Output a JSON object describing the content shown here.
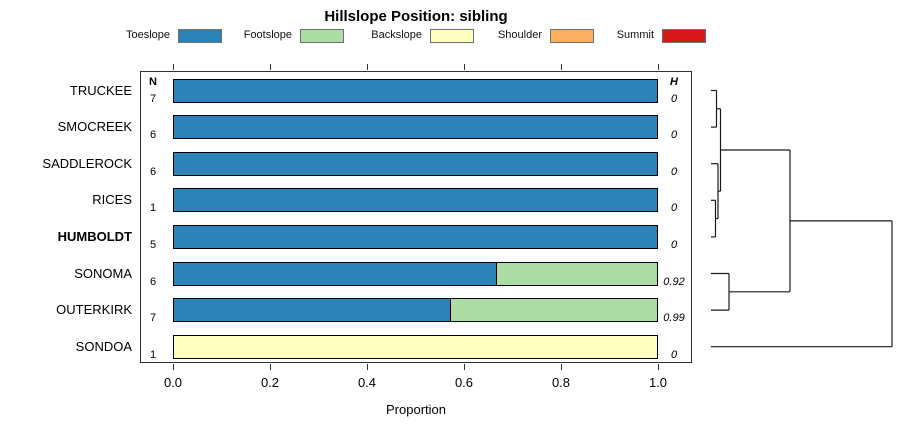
{
  "title": "Hillslope Position: sibling",
  "legend": {
    "items": [
      {
        "label": "Toeslope",
        "color": "#2b83ba"
      },
      {
        "label": "Footslope",
        "color": "#abdda4"
      },
      {
        "label": "Backslope",
        "color": "#ffffbf"
      },
      {
        "label": "Shoulder",
        "color": "#fdae61"
      },
      {
        "label": "Summit",
        "color": "#d7191c"
      }
    ]
  },
  "columns": {
    "n_header": "N",
    "h_header": "H"
  },
  "axis": {
    "label": "Proportion",
    "tick_labels": [
      "0.0",
      "0.2",
      "0.4",
      "0.6",
      "0.8",
      "1.0"
    ],
    "tick_values": [
      0,
      0.2,
      0.4,
      0.6,
      0.8,
      1.0
    ]
  },
  "chart_data": {
    "type": "bar",
    "orientation": "horizontal",
    "stacked": true,
    "title": "Hillslope Position: sibling",
    "xlabel": "Proportion",
    "xlim": [
      0,
      1
    ],
    "legend_position": "top",
    "categories": [
      "TRUCKEE",
      "SMOCREEK",
      "SADDLEROCK",
      "RICES",
      "HUMBOLDT",
      "SONOMA",
      "OUTERKIRK",
      "SONDOA"
    ],
    "colors": {
      "Toeslope": "#2b83ba",
      "Footslope": "#abdda4",
      "Backslope": "#ffffbf",
      "Shoulder": "#fdae61",
      "Summit": "#d7191c"
    },
    "rows": [
      {
        "label": "TRUCKEE",
        "bold": false,
        "n": "7",
        "h": "0",
        "segments": [
          {
            "name": "Toeslope",
            "value": 1.0
          }
        ]
      },
      {
        "label": "SMOCREEK",
        "bold": false,
        "n": "6",
        "h": "0",
        "segments": [
          {
            "name": "Toeslope",
            "value": 1.0
          }
        ]
      },
      {
        "label": "SADDLEROCK",
        "bold": false,
        "n": "6",
        "h": "0",
        "segments": [
          {
            "name": "Toeslope",
            "value": 1.0
          }
        ]
      },
      {
        "label": "RICES",
        "bold": false,
        "n": "1",
        "h": "0",
        "segments": [
          {
            "name": "Toeslope",
            "value": 1.0
          }
        ]
      },
      {
        "label": "HUMBOLDT",
        "bold": true,
        "n": "5",
        "h": "0",
        "segments": [
          {
            "name": "Toeslope",
            "value": 1.0
          }
        ]
      },
      {
        "label": "SONOMA",
        "bold": false,
        "n": "6",
        "h": "0.92",
        "segments": [
          {
            "name": "Toeslope",
            "value": 0.667
          },
          {
            "name": "Footslope",
            "value": 0.333
          }
        ]
      },
      {
        "label": "OUTERKIRK",
        "bold": false,
        "n": "7",
        "h": "0.99",
        "segments": [
          {
            "name": "Toeslope",
            "value": 0.571
          },
          {
            "name": "Footslope",
            "value": 0.429
          }
        ]
      },
      {
        "label": "SONDOA",
        "bold": false,
        "n": "1",
        "h": "0",
        "segments": [
          {
            "name": "Backslope",
            "value": 1.0
          }
        ]
      }
    ],
    "dendrogram": {
      "leaves": [
        "TRUCKEE",
        "SMOCREEK",
        "SADDLEROCK",
        "RICES",
        "HUMBOLDT",
        "SONOMA",
        "OUTERKIRK",
        "SONDOA"
      ],
      "merges": [
        {
          "id": "m1",
          "children": [
            "TRUCKEE",
            "SMOCREEK"
          ],
          "height": 5.5
        },
        {
          "id": "m2",
          "children": [
            "RICES",
            "HUMBOLDT"
          ],
          "height": 4.5
        },
        {
          "id": "m3",
          "children": [
            "SADDLEROCK",
            "m2"
          ],
          "height": 7
        },
        {
          "id": "m4",
          "children": [
            "m1",
            "m3"
          ],
          "height": 9.5
        },
        {
          "id": "m5",
          "children": [
            "SONOMA",
            "OUTERKIRK"
          ],
          "height": 18
        },
        {
          "id": "m6",
          "children": [
            "m4",
            "m5"
          ],
          "height": 79
        },
        {
          "id": "m7",
          "children": [
            "m6",
            "SONDOA"
          ],
          "height": 181
        }
      ]
    }
  }
}
